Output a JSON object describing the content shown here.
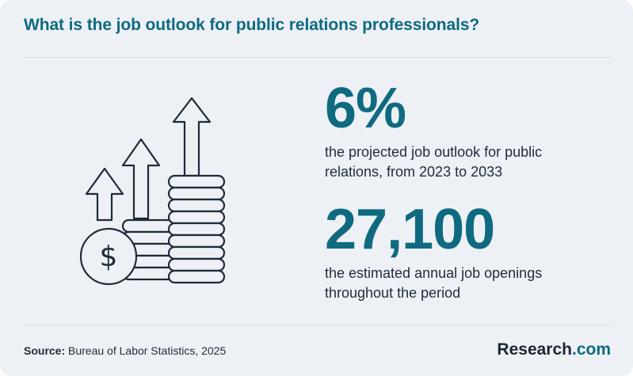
{
  "header": {
    "title": "What is the job outlook for public relations professionals?"
  },
  "stats": [
    {
      "value": "6%",
      "description": "the projected job outlook for public relations, from 2023 to 2033"
    },
    {
      "value": "27,100",
      "description": "the estimated annual job openings throughout the period"
    }
  ],
  "footer": {
    "source_label": "Source:",
    "source_text": "Bureau of Labor Statistics, 2025",
    "brand_name": "Research",
    "brand_tld": ".com"
  },
  "illustration": {
    "icon": "coin-stacks-growth-icon",
    "currency_symbol": "$"
  },
  "colors": {
    "background": "#edf1f6",
    "accent": "#0f6a80",
    "text": "#232c3b",
    "icon_stroke": "#1f2a3a"
  }
}
